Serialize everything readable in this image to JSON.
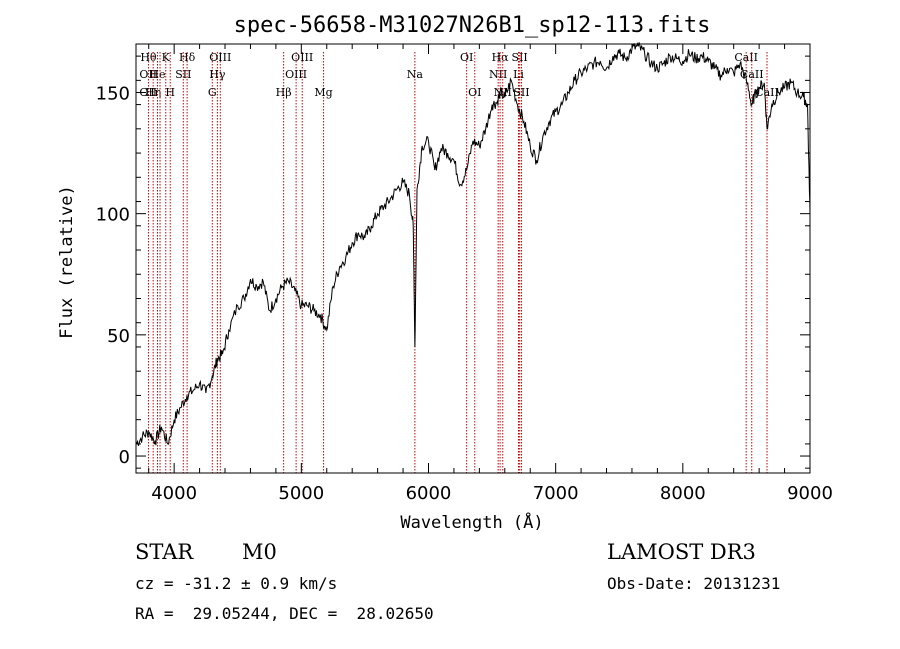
{
  "chart_data": {
    "type": "line",
    "title": "spec-56658-M31027N26B1_sp12-113.fits",
    "xlabel": "Wavelength (Å)",
    "ylabel": "Flux (relative)",
    "xlim": [
      3700,
      9000
    ],
    "ylim": [
      -7,
      170
    ],
    "xticks": [
      4000,
      5000,
      6000,
      7000,
      8000,
      9000
    ],
    "yticks": [
      0,
      50,
      100,
      150
    ],
    "grid": false,
    "series": [
      {
        "name": "spectrum",
        "x": [
          3700,
          3750,
          3800,
          3850,
          3900,
          3950,
          4000,
          4050,
          4100,
          4150,
          4200,
          4250,
          4300,
          4340,
          4380,
          4430,
          4500,
          4550,
          4600,
          4650,
          4700,
          4750,
          4800,
          4850,
          4900,
          4950,
          5000,
          5050,
          5100,
          5150,
          5200,
          5250,
          5300,
          5350,
          5400,
          5450,
          5500,
          5550,
          5600,
          5650,
          5700,
          5750,
          5800,
          5850,
          5880,
          5893,
          5910,
          5950,
          6000,
          6050,
          6100,
          6150,
          6200,
          6250,
          6300,
          6350,
          6400,
          6450,
          6500,
          6540,
          6563,
          6600,
          6650,
          6700,
          6750,
          6800,
          6850,
          6900,
          6950,
          7000,
          7050,
          7100,
          7150,
          7200,
          7250,
          7300,
          7350,
          7400,
          7450,
          7500,
          7550,
          7600,
          7650,
          7700,
          7750,
          7800,
          7850,
          7900,
          7950,
          8000,
          8050,
          8100,
          8150,
          8200,
          8250,
          8300,
          8350,
          8400,
          8450,
          8500,
          8542,
          8560,
          8600,
          8640,
          8662,
          8700,
          8750,
          8800,
          8850,
          8900,
          8950,
          8980,
          9000
        ],
        "y": [
          5,
          8,
          10,
          6,
          12,
          5,
          15,
          20,
          25,
          27,
          30,
          26,
          33,
          40,
          42,
          52,
          62,
          65,
          73,
          70,
          72,
          60,
          65,
          70,
          72,
          68,
          62,
          62,
          60,
          58,
          52,
          70,
          78,
          82,
          88,
          92,
          90,
          95,
          100,
          103,
          106,
          110,
          113,
          108,
          95,
          45,
          110,
          128,
          130,
          118,
          127,
          125,
          122,
          112,
          118,
          130,
          128,
          135,
          145,
          146,
          150,
          148,
          155,
          145,
          138,
          128,
          122,
          132,
          138,
          142,
          145,
          150,
          155,
          158,
          160,
          162,
          163,
          160,
          165,
          166,
          164,
          168,
          169,
          166,
          162,
          160,
          162,
          165,
          164,
          163,
          166,
          164,
          165,
          163,
          160,
          157,
          160,
          158,
          162,
          155,
          145,
          148,
          152,
          154,
          135,
          145,
          150,
          152,
          154,
          150,
          148,
          145,
          100
        ]
      }
    ],
    "line_markers": [
      {
        "wavelength": 3798,
        "label": "Hθ",
        "row": 1
      },
      {
        "wavelength": 3835,
        "label": "Hη",
        "row": 3
      },
      {
        "wavelength": 3869,
        "label": "He",
        "row": 2
      },
      {
        "wavelength": 3889,
        "label": "",
        "row": 0
      },
      {
        "wavelength": 3934,
        "label": "K",
        "row": 1
      },
      {
        "wavelength": 3969,
        "label": "H",
        "row": 3
      },
      {
        "wavelength": 4072,
        "label": "SII",
        "row": 2
      },
      {
        "wavelength": 4102,
        "label": "Hδ",
        "row": 1
      },
      {
        "wavelength": 4300,
        "label": "G",
        "row": 3
      },
      {
        "wavelength": 4340,
        "label": "Hγ",
        "row": 2
      },
      {
        "wavelength": 4363,
        "label": "OIII",
        "row": 1
      },
      {
        "wavelength": 4861,
        "label": "Hβ",
        "row": 3
      },
      {
        "wavelength": 4959,
        "label": "OIII",
        "row": 2
      },
      {
        "wavelength": 5007,
        "label": "OIII",
        "row": 1
      },
      {
        "wavelength": 5175,
        "label": "Mg",
        "row": 3
      },
      {
        "wavelength": 5893,
        "label": "Na",
        "row": 2
      },
      {
        "wavelength": 6300,
        "label": "OI",
        "row": 1
      },
      {
        "wavelength": 6364,
        "label": "OI",
        "row": 3
      },
      {
        "wavelength": 6548,
        "label": "NII",
        "row": 2
      },
      {
        "wavelength": 6563,
        "label": "Hα",
        "row": 1
      },
      {
        "wavelength": 6584,
        "label": "NII",
        "row": 3
      },
      {
        "wavelength": 6708,
        "label": "Li",
        "row": 2
      },
      {
        "wavelength": 6717,
        "label": "SII",
        "row": 1
      },
      {
        "wavelength": 6731,
        "label": "SII",
        "row": 3
      },
      {
        "wavelength": 8498,
        "label": "CaII",
        "row": 1
      },
      {
        "wavelength": 8542,
        "label": "CaII",
        "row": 2
      },
      {
        "wavelength": 8662,
        "label": "CaII",
        "row": 3
      }
    ],
    "extra_labels": [
      {
        "wavelength": 3727,
        "label": "OII",
        "row": 2
      },
      {
        "wavelength": 3727,
        "label": "OII",
        "row": 3
      }
    ]
  },
  "info": {
    "class": "STAR",
    "subclass": "M0",
    "cz": "cz = -31.2 ± 0.9 km/s",
    "radec": "RA =  29.05244, DEC =  28.02650",
    "survey": "LAMOST DR3",
    "obsdate": "Obs-Date: 20131231"
  },
  "colors": {
    "line": "#000000",
    "marker": "#cc0000",
    "axis": "#000000"
  }
}
